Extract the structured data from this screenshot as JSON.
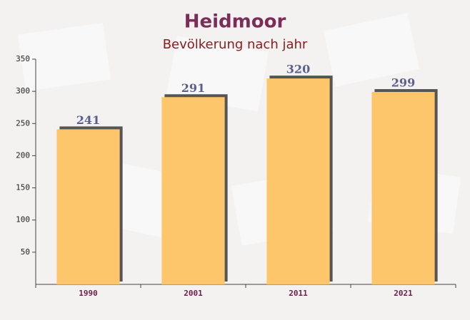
{
  "chart_data": {
    "type": "bar",
    "title": "Heidmoor",
    "subtitle": "Bevölkerung nach jahr",
    "categories": [
      "1990",
      "2001",
      "2011",
      "2021"
    ],
    "values": [
      241,
      291,
      320,
      299
    ],
    "color": "#fdc66b",
    "ylim": [
      0,
      350
    ],
    "yticks": [
      50,
      100,
      150,
      200,
      250,
      300,
      350
    ],
    "grid": false
  }
}
